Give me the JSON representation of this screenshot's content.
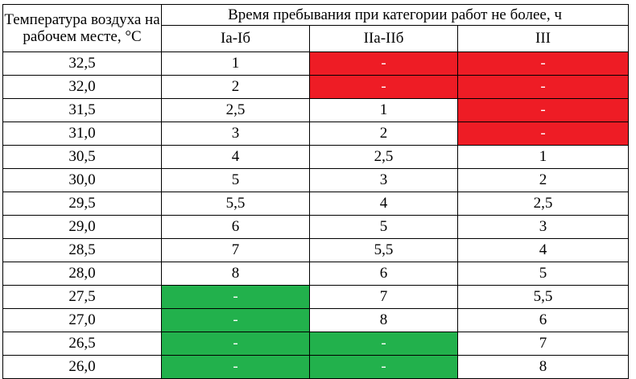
{
  "header": {
    "temp_col": "Температура воздуха на рабочем месте, °С",
    "group_title": "Время пребывания при категории работ не более, ч",
    "categories": [
      "Iа-Iб",
      "IIа-IIб",
      "III"
    ]
  },
  "rows": [
    {
      "temp": "32,5",
      "v": [
        "1",
        "-",
        "-"
      ],
      "fill": [
        "",
        "red",
        "red"
      ]
    },
    {
      "temp": "32,0",
      "v": [
        "2",
        "-",
        "-"
      ],
      "fill": [
        "",
        "red",
        "red"
      ]
    },
    {
      "temp": "31,5",
      "v": [
        "2,5",
        "1",
        "-"
      ],
      "fill": [
        "",
        "",
        "red"
      ]
    },
    {
      "temp": "31,0",
      "v": [
        "3",
        "2",
        "-"
      ],
      "fill": [
        "",
        "",
        "red"
      ]
    },
    {
      "temp": "30,5",
      "v": [
        "4",
        "2,5",
        "1"
      ],
      "fill": [
        "",
        "",
        ""
      ]
    },
    {
      "temp": "30,0",
      "v": [
        "5",
        "3",
        "2"
      ],
      "fill": [
        "",
        "",
        ""
      ]
    },
    {
      "temp": "29,5",
      "v": [
        "5,5",
        "4",
        "2,5"
      ],
      "fill": [
        "",
        "",
        ""
      ]
    },
    {
      "temp": "29,0",
      "v": [
        "6",
        "5",
        "3"
      ],
      "fill": [
        "",
        "",
        ""
      ]
    },
    {
      "temp": "28,5",
      "v": [
        "7",
        "5,5",
        "4"
      ],
      "fill": [
        "",
        "",
        ""
      ]
    },
    {
      "temp": "28,0",
      "v": [
        "8",
        "6",
        "5"
      ],
      "fill": [
        "",
        "",
        ""
      ]
    },
    {
      "temp": "27,5",
      "v": [
        "-",
        "7",
        "5,5"
      ],
      "fill": [
        "green",
        "",
        ""
      ]
    },
    {
      "temp": "27,0",
      "v": [
        "-",
        "8",
        "6"
      ],
      "fill": [
        "green",
        "",
        ""
      ]
    },
    {
      "temp": "26,5",
      "v": [
        "-",
        "-",
        "7"
      ],
      "fill": [
        "green",
        "green",
        ""
      ]
    },
    {
      "temp": "26,0",
      "v": [
        "-",
        "-",
        "8"
      ],
      "fill": [
        "green",
        "green",
        ""
      ]
    }
  ],
  "colors": {
    "red": "#ee1c25",
    "green": "#22b14c"
  }
}
